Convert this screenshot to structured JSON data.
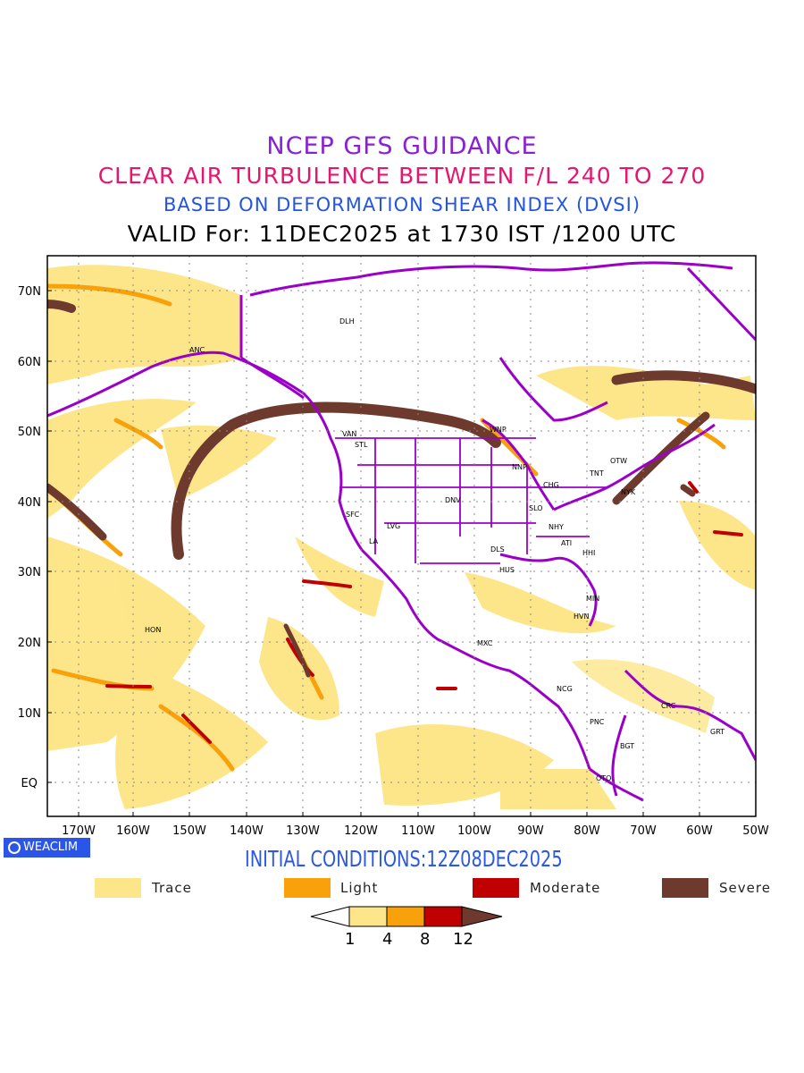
{
  "titles": {
    "line1": "NCEP GFS GUIDANCE",
    "line2": "CLEAR AIR TURBULENCE BETWEEN F/L 240 TO 270",
    "line3": "BASED ON DEFORMATION SHEAR INDEX (DVSI)",
    "line4": "VALID For: 11DEC2025 at 1730 IST /1200 UTC"
  },
  "initial_conditions": "INITIAL CONDITIONS:12Z08DEC2025",
  "brand": "WEACLIM",
  "legend": [
    {
      "label": "Trace",
      "color": "#fde68a"
    },
    {
      "label": "Light",
      "color": "#f9a10a"
    },
    {
      "label": "Moderate",
      "color": "#c00000"
    },
    {
      "label": "Severe",
      "color": "#6e3a2e"
    }
  ],
  "colorbar": {
    "ticks": [
      "1",
      "4",
      "8",
      "12"
    ]
  },
  "axes": {
    "lon_labels": [
      "170W",
      "160W",
      "150W",
      "140W",
      "130W",
      "120W",
      "110W",
      "100W",
      "90W",
      "80W",
      "70W",
      "60W",
      "50W"
    ],
    "lat_labels": [
      "70N",
      "60N",
      "50N",
      "40N",
      "30N",
      "20N",
      "10N",
      "EQ"
    ]
  },
  "stations": [
    "DLH",
    "ANC",
    "VAN",
    "STL",
    "WNP",
    "NNP",
    "OTW",
    "TNT",
    "CHG",
    "NYK",
    "DNV",
    "SLO",
    "SFC",
    "LVG",
    "LA",
    "NHY",
    "ATI",
    "DLS",
    "HHI",
    "HUS",
    "MIN",
    "HVN",
    "HON",
    "MXC",
    "NCG",
    "CRC",
    "GRT",
    "PNC",
    "BGT",
    "OTO"
  ],
  "colors": {
    "coast": "#9b00c9",
    "grid": "#888888"
  }
}
